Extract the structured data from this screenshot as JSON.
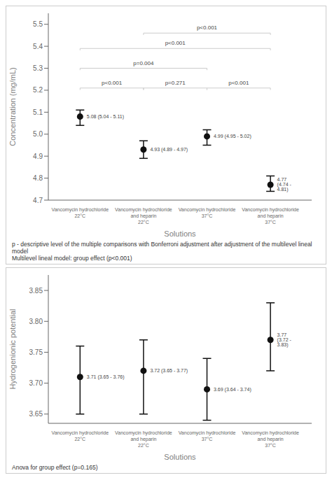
{
  "chart_data": [
    {
      "type": "scatter",
      "categories": [
        "Vancomycin hydrochloride\n22°C",
        "Vancomycin hydrochloride\nand heparin\n22°C",
        "Vancomycin hydrochloride\n37°C",
        "Vancomycin hydrochloride\nand heparin\n37°C"
      ],
      "values": [
        5.08,
        4.93,
        4.99,
        4.77
      ],
      "lower": [
        5.04,
        4.89,
        4.95,
        4.74
      ],
      "upper": [
        5.11,
        4.97,
        5.02,
        4.81
      ],
      "value_labels": [
        "5.08 (5.04 - 5.11)",
        "4.93 (4.89 - 4.97)",
        "4.99 (4.95 - 5.02)",
        "4.77 (4.74 - 4.81)"
      ],
      "xlabel": "Solutions",
      "ylabel": "Concentration (mg/mL)",
      "ylim": [
        4.7,
        5.55
      ],
      "yticks": [
        4.7,
        4.8,
        4.9,
        {
          "value": 5.0,
          "label": "5.0"
        },
        5.1,
        5.2,
        5.3,
        5.4,
        5.5
      ],
      "color": "#111111",
      "annotations": [
        {
          "from": "Vancomycin hydrochloride\n22°C",
          "to": "Vancomycin hydrochloride\nand heparin\n22°C",
          "y": 5.21,
          "label": "p<0.001"
        },
        {
          "from": "Vancomycin hydrochloride\nand heparin\n22°C",
          "to": "Vancomycin hydrochloride\n37°C",
          "y": 5.21,
          "label": "p=0.271"
        },
        {
          "from": "Vancomycin hydrochloride\n37°C",
          "to": "Vancomycin hydrochloride\nand heparin\n37°C",
          "y": 5.21,
          "label": "p<0.001"
        },
        {
          "from": "Vancomycin hydrochloride\n22°C",
          "to": "Vancomycin hydrochloride\n37°C",
          "y": 5.3,
          "label": "p=0.004"
        },
        {
          "from": "Vancomycin hydrochloride\n22°C",
          "to": "Vancomycin hydrochloride\nand heparin\n37°C",
          "y": 5.39,
          "label": "p<0.001"
        },
        {
          "from": "Vancomycin hydrochloride\nand heparin\n22°C",
          "to": "Vancomycin hydrochloride\nand heparin\n37°C",
          "y": 5.46,
          "label": "p<0.001"
        }
      ],
      "footnotes": [
        "p - descriptive level of the multiple comparisons with Bonferroni adjustment after adjustment of the multilevel lineal model",
        "Multilevel lineal model: group effect (p<0.001)"
      ]
    },
    {
      "type": "scatter",
      "categories": [
        "Vancomycin hydrochloride\n22°C",
        "Vancomycin hydrochloride\nand heparin\n22°C",
        "Vancomycin hydrochloride\n37°C",
        "Vancomycin hydrochloride\nand heparin\n37°C"
      ],
      "values": [
        3.71,
        3.72,
        3.69,
        3.77
      ],
      "lower": [
        3.65,
        3.65,
        3.64,
        3.72
      ],
      "upper": [
        3.76,
        3.77,
        3.74,
        3.83
      ],
      "value_labels": [
        "3.71 (3.65 - 3.76)",
        "3.72 (3.65 - 3.77)",
        "3.69 (3.64 - 3.74)",
        "3.77 (3.72 - 3.83)"
      ],
      "xlabel": "Solutions",
      "ylabel": "Hydrogenionic potential",
      "ylim": [
        3.635,
        3.875
      ],
      "yticks": [
        3.65,
        {
          "value": 3.7,
          "label": "3.70"
        },
        3.75,
        {
          "value": 3.8,
          "label": "3.80"
        },
        3.85
      ],
      "color": "#111111",
      "footnotes": [
        "Anova for group effect (p=0.165)"
      ]
    }
  ]
}
